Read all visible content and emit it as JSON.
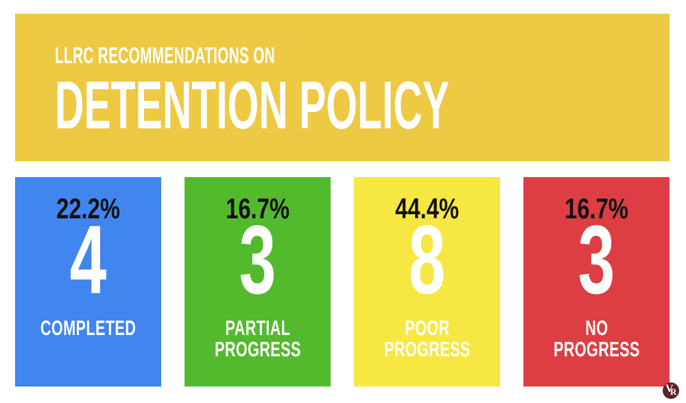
{
  "header": {
    "kicker": "LLRC RECOMMENDATIONS ON",
    "title": "DETENTION POLICY",
    "background_color": "#EEC943",
    "text_color": "#FFFFFF"
  },
  "cards": [
    {
      "percent": "22.2%",
      "count": "4",
      "label_line1": "COMPLETED",
      "color": "#4185EE"
    },
    {
      "percent": "16.7%",
      "count": "3",
      "label_line1": "PARTIAL",
      "label_line2": "PROGRESS",
      "color": "#53BA2E"
    },
    {
      "percent": "44.4%",
      "count": "8",
      "label_line1": "POOR",
      "label_line2": "PROGRESS",
      "color": "#F7E743"
    },
    {
      "percent": "16.7%",
      "count": "3",
      "label_line1": "NO",
      "label_line2": "PROGRESS",
      "color": "#DC3E43"
    }
  ],
  "logo": {
    "letter_v": "V",
    "letter_r": "R",
    "background_color": "#5F2229",
    "text_color": "#FFFFFF"
  },
  "chart_data": {
    "type": "bar",
    "title": "LLRC RECOMMENDATIONS ON DETENTION POLICY",
    "categories": [
      "COMPLETED",
      "PARTIAL PROGRESS",
      "POOR PROGRESS",
      "NO PROGRESS"
    ],
    "values": [
      4,
      3,
      8,
      3
    ],
    "percent_labels": [
      "22.2%",
      "16.7%",
      "44.4%",
      "16.7%"
    ],
    "colors": [
      "#4185EE",
      "#53BA2E",
      "#F7E743",
      "#DC3E43"
    ],
    "legend_position": "none",
    "grid": false
  }
}
